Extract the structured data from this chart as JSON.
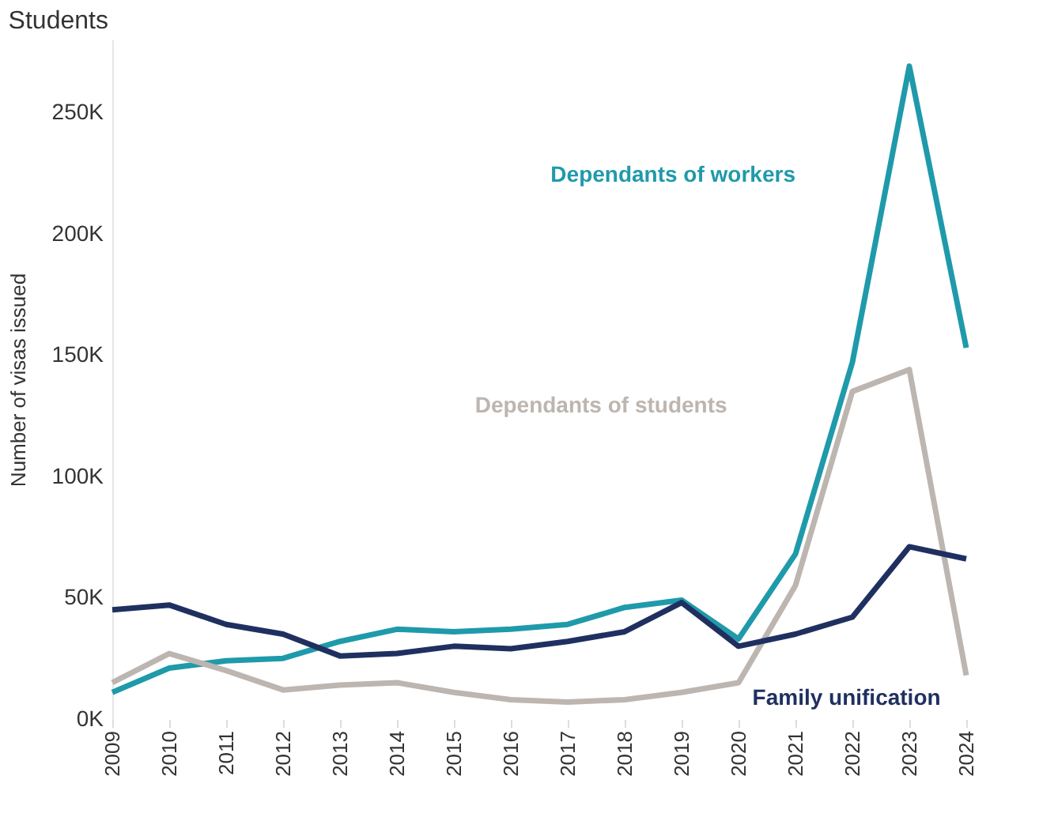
{
  "chart_data": {
    "type": "line",
    "title": "Students",
    "ylabel": "Number of visas issued",
    "categories": [
      "2009",
      "2010",
      "2011",
      "2012",
      "2013",
      "2014",
      "2015",
      "2016",
      "2017",
      "2018",
      "2019",
      "2020",
      "2021",
      "2022",
      "2023",
      "2024"
    ],
    "series": [
      {
        "name": "Dependants of workers",
        "color": "#1f9aaa",
        "values": [
          11000,
          21000,
          24000,
          25000,
          32000,
          37000,
          36000,
          37000,
          39000,
          46000,
          49000,
          33000,
          68000,
          147000,
          269000,
          153000
        ]
      },
      {
        "name": "Dependants of students",
        "color": "#bdb5b0",
        "values": [
          15000,
          27000,
          20000,
          12000,
          14000,
          15000,
          11000,
          8000,
          7000,
          8000,
          11000,
          15000,
          55000,
          135000,
          144000,
          18000
        ]
      },
      {
        "name": "Family unification",
        "color": "#1f3060",
        "values": [
          45000,
          47000,
          39000,
          35000,
          26000,
          27000,
          30000,
          29000,
          32000,
          36000,
          48000,
          30000,
          35000,
          42000,
          71000,
          66000
        ]
      }
    ],
    "ylim": [
      0,
      280000
    ],
    "yticks": [
      {
        "value": 0,
        "label": "0K"
      },
      {
        "value": 50000,
        "label": "50K"
      },
      {
        "value": 100000,
        "label": "100K"
      },
      {
        "value": 150000,
        "label": "150K"
      },
      {
        "value": 200000,
        "label": "200K"
      },
      {
        "value": 250000,
        "label": "250K"
      }
    ],
    "grid": false,
    "legend": false,
    "marker": "none",
    "line_style": "solid"
  }
}
